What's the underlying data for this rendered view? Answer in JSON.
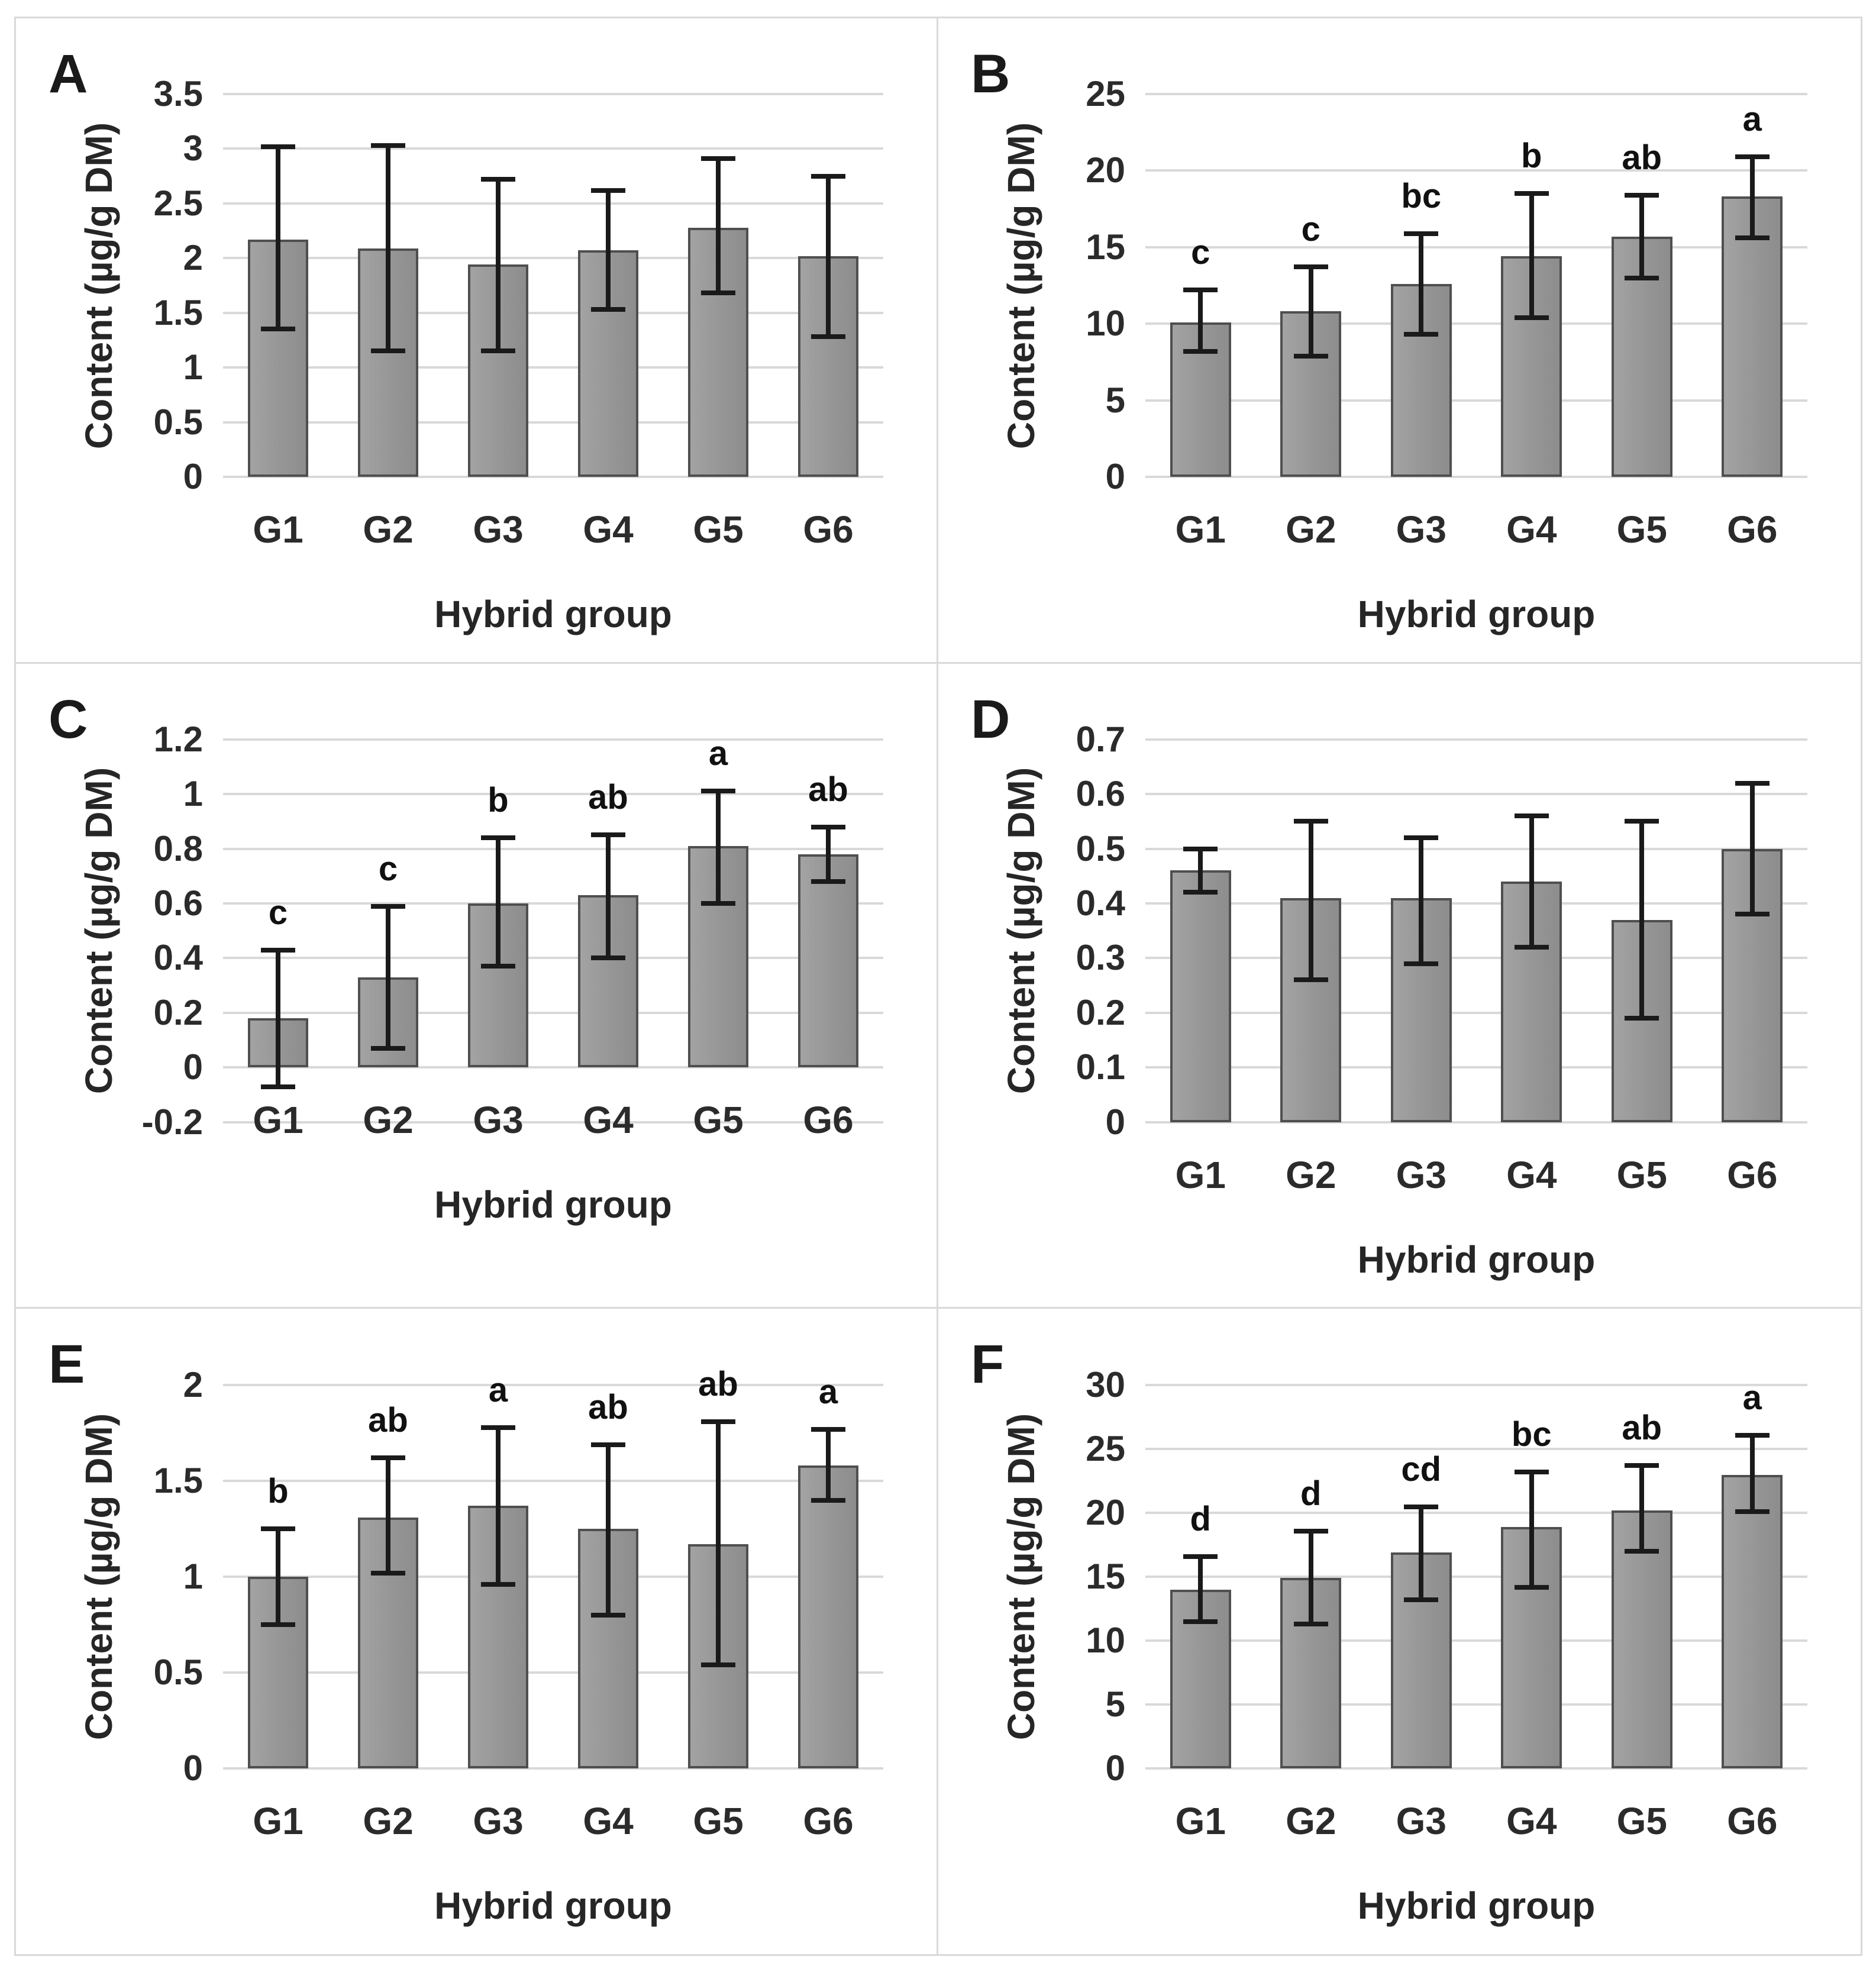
{
  "figure": {
    "type": "multi-panel-bar-figure",
    "layout": "2x3 grid",
    "frame_color": "#d9d9d9",
    "background": "#ffffff",
    "bar_fill": "#979797",
    "bar_border": "#4f4f4f",
    "error_bar_color": "#1a1a1a",
    "gridline_color": "#d9d9d9",
    "text_color": "#262626"
  },
  "chart_data": [
    {
      "type": "bar",
      "panel": "A",
      "xlabel": "Hybrid group",
      "ylabel": "Content (µg/g DM)",
      "categories": [
        "G1",
        "G2",
        "G3",
        "G4",
        "G5",
        "G6"
      ],
      "values": [
        2.17,
        2.09,
        1.94,
        2.07,
        2.28,
        2.02
      ],
      "error_low": [
        1.35,
        1.15,
        1.15,
        1.53,
        1.68,
        1.28
      ],
      "error_high": [
        3.02,
        3.03,
        2.72,
        2.62,
        2.91,
        2.75
      ],
      "letters": [
        "",
        "",
        "",
        "",
        "",
        ""
      ],
      "ylim": [
        0,
        3.5
      ],
      "ticks": [
        0,
        0.5,
        1,
        1.5,
        2,
        2.5,
        3,
        3.5
      ],
      "tick_labels": [
        "0",
        "0.5",
        "1",
        "1.5",
        "2",
        "2.5",
        "3",
        "3.5"
      ],
      "grid": true,
      "legend": "none"
    },
    {
      "type": "bar",
      "panel": "B",
      "xlabel": "Hybrid group",
      "ylabel": "Content (µg/g DM)",
      "categories": [
        "G1",
        "G2",
        "G3",
        "G4",
        "G5",
        "G6"
      ],
      "values": [
        10.1,
        10.8,
        12.6,
        14.4,
        15.7,
        18.3
      ],
      "error_low": [
        8.2,
        7.9,
        9.3,
        10.4,
        13.0,
        15.6
      ],
      "error_high": [
        12.2,
        13.7,
        15.9,
        18.5,
        18.4,
        20.9
      ],
      "letters": [
        "c",
        "c",
        "bc",
        "b",
        "ab",
        "a"
      ],
      "ylim": [
        0,
        25
      ],
      "ticks": [
        0,
        5,
        10,
        15,
        20,
        25
      ],
      "tick_labels": [
        "0",
        "5",
        "10",
        "15",
        "20",
        "25"
      ],
      "grid": true,
      "legend": "none"
    },
    {
      "type": "bar",
      "panel": "C",
      "xlabel": "Hybrid group",
      "ylabel": "Content (µg/g DM)",
      "categories": [
        "G1",
        "G2",
        "G3",
        "G4",
        "G5",
        "G6"
      ],
      "values": [
        0.18,
        0.33,
        0.6,
        0.63,
        0.81,
        0.78
      ],
      "error_low": [
        -0.07,
        0.07,
        0.37,
        0.4,
        0.6,
        0.68
      ],
      "error_high": [
        0.43,
        0.59,
        0.84,
        0.85,
        1.01,
        0.88
      ],
      "letters": [
        "c",
        "c",
        "b",
        "ab",
        "a",
        "ab"
      ],
      "ylim": [
        -0.2,
        1.2
      ],
      "ticks": [
        -0.2,
        0,
        0.2,
        0.4,
        0.6,
        0.8,
        1,
        1.2
      ],
      "tick_labels": [
        "-0.2",
        "0",
        "0.2",
        "0.4",
        "0.6",
        "0.8",
        "1",
        "1.2"
      ],
      "grid": true,
      "legend": "none"
    },
    {
      "type": "bar",
      "panel": "D",
      "xlabel": "Hybrid group",
      "ylabel": "Content (µg/g DM)",
      "categories": [
        "G1",
        "G2",
        "G3",
        "G4",
        "G5",
        "G6"
      ],
      "values": [
        0.46,
        0.41,
        0.41,
        0.44,
        0.37,
        0.5
      ],
      "error_low": [
        0.42,
        0.26,
        0.29,
        0.32,
        0.19,
        0.38
      ],
      "error_high": [
        0.5,
        0.55,
        0.52,
        0.56,
        0.55,
        0.62
      ],
      "letters": [
        "",
        "",
        "",
        "",
        "",
        ""
      ],
      "ylim": [
        0,
        0.7
      ],
      "ticks": [
        0,
        0.1,
        0.2,
        0.3,
        0.4,
        0.5,
        0.6,
        0.7
      ],
      "tick_labels": [
        "0",
        "0.1",
        "0.2",
        "0.3",
        "0.4",
        "0.5",
        "0.6",
        "0.7"
      ],
      "grid": true,
      "legend": "none"
    },
    {
      "type": "bar",
      "panel": "E",
      "xlabel": "Hybrid group",
      "ylabel": "Content (µg/g DM)",
      "categories": [
        "G1",
        "G2",
        "G3",
        "G4",
        "G5",
        "G6"
      ],
      "values": [
        1.0,
        1.31,
        1.37,
        1.25,
        1.17,
        1.58
      ],
      "error_low": [
        0.75,
        1.02,
        0.96,
        0.8,
        0.54,
        1.4
      ],
      "error_high": [
        1.25,
        1.62,
        1.78,
        1.69,
        1.81,
        1.77
      ],
      "letters": [
        "b",
        "ab",
        "a",
        "ab",
        "ab",
        "a"
      ],
      "ylim": [
        0,
        2
      ],
      "ticks": [
        0,
        0.5,
        1,
        1.5,
        2
      ],
      "tick_labels": [
        "0",
        "0.5",
        "1",
        "1.5",
        "2"
      ],
      "grid": true,
      "legend": "none"
    },
    {
      "type": "bar",
      "panel": "F",
      "xlabel": "Hybrid group",
      "ylabel": "Content (µg/g DM)",
      "categories": [
        "G1",
        "G2",
        "G3",
        "G4",
        "G5",
        "G6"
      ],
      "values": [
        14.0,
        14.9,
        16.9,
        18.9,
        20.2,
        23.0
      ],
      "error_low": [
        11.5,
        11.3,
        13.2,
        14.2,
        17.0,
        20.1
      ],
      "error_high": [
        16.6,
        18.6,
        20.5,
        23.2,
        23.7,
        26.1
      ],
      "letters": [
        "d",
        "d",
        "cd",
        "bc",
        "ab",
        "a"
      ],
      "ylim": [
        0,
        30
      ],
      "ticks": [
        0,
        5,
        10,
        15,
        20,
        25,
        30
      ],
      "tick_labels": [
        "0",
        "5",
        "10",
        "15",
        "20",
        "25",
        "30"
      ],
      "grid": true,
      "legend": "none"
    }
  ]
}
